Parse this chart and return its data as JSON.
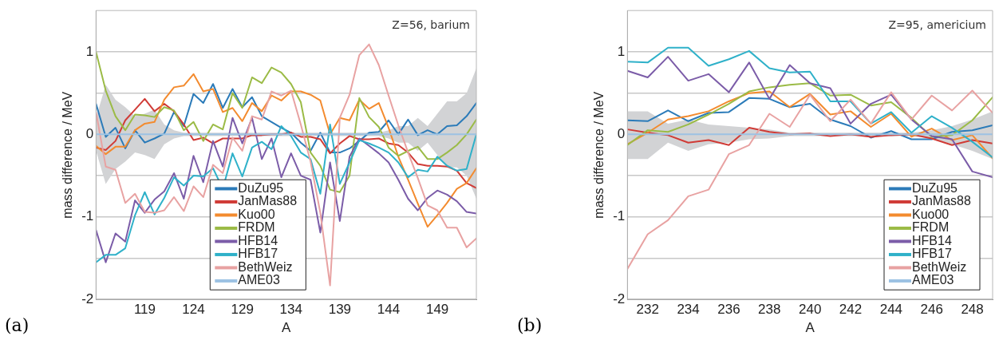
{
  "chart_data": [
    {
      "type": "line",
      "xlabel": "A",
      "ylabel": "mass difference / MeV",
      "annotations": [
        "(a)",
        "Z=56, barium"
      ],
      "xlim": [
        114,
        153
      ],
      "ylim": [
        -2,
        1.5
      ],
      "xticks": [
        119,
        124,
        129,
        134,
        139,
        144,
        149
      ],
      "yticks": [
        -2,
        {
          "value": -1.5,
          "label": null
        },
        -1,
        {
          "value": -0.5,
          "label": null
        },
        0,
        {
          "value": 0.5,
          "label": null
        },
        1
      ],
      "grid": "y",
      "legend": "bottom left",
      "x": [
        114,
        115,
        116,
        117,
        118,
        119,
        120,
        121,
        122,
        123,
        124,
        125,
        126,
        127,
        128,
        129,
        130,
        131,
        132,
        133,
        134,
        135,
        136,
        137,
        138,
        139,
        140,
        141,
        142,
        143,
        144,
        145,
        146,
        147,
        148,
        149,
        150,
        151,
        152,
        153
      ],
      "series": [
        {
          "name": "DuZu95",
          "color": "#2b7bb9",
          "values": [
            0.37,
            -0.03,
            0.08,
            -0.17,
            0.05,
            -0.1,
            -0.05,
            0.01,
            0.27,
            0.1,
            0.49,
            0.38,
            0.61,
            0.32,
            0.55,
            0.33,
            0.45,
            0.22,
            0.15,
            0.08,
            0.02,
            -0.1,
            -0.2,
            0.02,
            -0.22,
            -0.22,
            -0.17,
            -0.08,
            0.02,
            0.03,
            0.17,
            0,
            0.18,
            -0.01,
            0.05,
            0,
            0.1,
            0.11,
            0.22,
            0.38
          ]
        },
        {
          "name": "JanMas88",
          "color": "#d03b36",
          "values": [
            -0.16,
            -0.19,
            -0.08,
            0.17,
            0.3,
            0.43,
            0.28,
            0.37,
            0.28,
            0.12,
            -0.07,
            -0.04,
            -0.11,
            -0.05,
            -0.05,
            -0.05,
            -0.01,
            -0.01,
            0,
            0,
            0.02,
            -0.03,
            -0.03,
            -0.06,
            -0.23,
            -0.11,
            -0.02,
            -0.06,
            -0.06,
            -0.05,
            -0.11,
            -0.13,
            -0.22,
            -0.36,
            -0.38,
            -0.38,
            -0.39,
            -0.44,
            -0.59,
            -0.65
          ]
        },
        {
          "name": "Kuo00",
          "color": "#f38b2f",
          "values": [
            -0.14,
            -0.24,
            -0.15,
            -0.15,
            0.05,
            0.13,
            0.15,
            0.42,
            0.57,
            0.59,
            0.73,
            0.52,
            0.55,
            0.27,
            0.32,
            0.16,
            0.38,
            0.28,
            0.47,
            0.41,
            0.52,
            0.52,
            0.48,
            0.41,
            0,
            0.2,
            0.17,
            0.42,
            0.31,
            0.38,
            0.08,
            -0.27,
            -0.55,
            -0.84,
            -1.12,
            -0.98,
            -0.83,
            -0.66,
            -0.59,
            -0.41
          ]
        },
        {
          "name": "FRDM",
          "color": "#9bbb46",
          "values": [
            1,
            0.53,
            0.22,
            0.05,
            0.24,
            0.23,
            0.21,
            0.33,
            0.29,
            0.05,
            0.15,
            -0.08,
            0.12,
            0.06,
            0.5,
            0.32,
            0.69,
            0.62,
            0.81,
            0.75,
            0.61,
            0.39,
            -0.22,
            -0.38,
            -0.67,
            -0.7,
            -0.5,
            0.44,
            0.21,
            0.09,
            -0.16,
            -0.26,
            -0.2,
            -0.15,
            -0.3,
            -0.3,
            -0.22,
            -0.13,
            0,
            0.18
          ]
        },
        {
          "name": "HFB14",
          "color": "#7b5ca8",
          "values": [
            -1.16,
            -1.55,
            -1.2,
            -1.3,
            -0.8,
            -0.95,
            -0.79,
            -0.69,
            -0.47,
            -0.78,
            -0.26,
            -0.58,
            -0.08,
            -0.39,
            0.2,
            -0.11,
            0.2,
            -0.3,
            -0.05,
            -0.52,
            -0.23,
            -0.5,
            -0.55,
            -1.19,
            -0.34,
            -1.05,
            -0.27,
            -0.05,
            -0.14,
            -0.23,
            -0.34,
            -0.55,
            -0.78,
            -0.92,
            -0.77,
            -0.68,
            -0.73,
            -0.81,
            -0.94,
            -0.96
          ]
        },
        {
          "name": "HFB17",
          "color": "#2fb1c9",
          "values": [
            -1.55,
            -1.46,
            -1.46,
            -1.38,
            -0.98,
            -0.7,
            -0.97,
            -0.77,
            -0.52,
            -0.62,
            -0.5,
            -0.51,
            -0.41,
            -0.66,
            -0.23,
            -0.51,
            -0.16,
            -0.09,
            -0.18,
            0.1,
            -0.02,
            -0.22,
            -0.3,
            -0.72,
            0.12,
            -0.6,
            -0.34,
            -0.07,
            -0.11,
            -0.16,
            -0.22,
            -0.34,
            -0.52,
            -0.43,
            -0.45,
            -0.27,
            -0.38,
            -0.44,
            -0.42,
            0
          ]
        },
        {
          "name": "BethWeiz",
          "color": "#e8a2a2",
          "values": [
            0.27,
            -0.39,
            -0.43,
            -0.83,
            -0.72,
            -0.94,
            -0.95,
            -0.92,
            -0.76,
            -0.93,
            -0.63,
            -0.76,
            -0.37,
            -0.47,
            -0.04,
            -0.2,
            0.22,
            0.18,
            0.52,
            0.47,
            0.53,
            0.12,
            -0.33,
            -0.95,
            -1.83,
            0.2,
            0.48,
            0.96,
            1.09,
            0.84,
            0.47,
            0.11,
            -0.22,
            -0.53,
            -0.86,
            -0.92,
            -1.13,
            -1.13,
            -1.37,
            -1.26
          ]
        },
        {
          "name": "AME03",
          "color": "#9cc2e3",
          "values": [
            0,
            0,
            0,
            0,
            0,
            0,
            0,
            0,
            0,
            0,
            0,
            0,
            0,
            0,
            0,
            0,
            0,
            0,
            0,
            0,
            0,
            0,
            0,
            0,
            0,
            0,
            0,
            0,
            0,
            0,
            0,
            0,
            0,
            0,
            0,
            0,
            0,
            0,
            0,
            0
          ],
          "lower": [
            -0.2,
            -0.6,
            -0.42,
            -0.33,
            -0.22,
            -0.25,
            -0.3,
            -0.12,
            -0.05,
            -0.02,
            -0.02,
            -0.02,
            -0.02,
            -0.02,
            -0.02,
            -0.02,
            -0.02,
            -0.02,
            -0.02,
            -0.02,
            -0.02,
            -0.02,
            -0.02,
            -0.02,
            -0.02,
            -0.02,
            -0.02,
            -0.02,
            -0.02,
            -0.02,
            -0.05,
            -0.1,
            -0.1,
            -0.2,
            -0.1,
            -0.25,
            -0.4,
            -0.4,
            -0.5,
            -0.78
          ],
          "upper": [
            0.2,
            0.6,
            0.42,
            0.33,
            0.22,
            0.25,
            0.3,
            0.12,
            0.05,
            0.02,
            0.02,
            0.02,
            0.02,
            0.02,
            0.02,
            0.02,
            0.02,
            0.02,
            0.02,
            0.02,
            0.02,
            0.02,
            0.02,
            0.02,
            0.02,
            0.02,
            0.02,
            0.02,
            0.02,
            0.02,
            0.05,
            0.1,
            0.1,
            0.2,
            0.1,
            0.25,
            0.4,
            0.4,
            0.5,
            0.8
          ]
        }
      ]
    },
    {
      "type": "line",
      "xlabel": "A",
      "ylabel": "mass difference / MeV",
      "annotations": [
        "(b)",
        "Z=95, americium"
      ],
      "xlim": [
        231,
        249
      ],
      "ylim": [
        -2,
        1.5
      ],
      "xticks": [
        232,
        234,
        236,
        238,
        240,
        242,
        244,
        246,
        248
      ],
      "yticks": [
        -2,
        {
          "value": -1.5,
          "label": null
        },
        -1,
        {
          "value": -0.5,
          "label": null
        },
        0,
        {
          "value": 0.5,
          "label": null
        },
        1
      ],
      "grid": "y",
      "legend": "bottom right",
      "x": [
        231,
        232,
        233,
        234,
        235,
        236,
        237,
        238,
        239,
        240,
        241,
        242,
        243,
        244,
        245,
        246,
        247,
        248,
        249
      ],
      "series": [
        {
          "name": "DuZu95",
          "color": "#2b7bb9",
          "values": [
            0.17,
            0.16,
            0.29,
            0.16,
            0.26,
            0.27,
            0.44,
            0.43,
            0.33,
            0.37,
            0.18,
            0.1,
            -0.04,
            0.04,
            -0.06,
            -0.06,
            0.03,
            0.05,
            0.11
          ]
        },
        {
          "name": "JanMas88",
          "color": "#d03b36",
          "values": [
            0.06,
            0.02,
            -0.01,
            -0.1,
            -0.07,
            -0.13,
            0.08,
            0.03,
            0,
            0.01,
            -0.02,
            0,
            -0.03,
            -0.01,
            0,
            -0.05,
            -0.13,
            -0.07,
            -0.11
          ]
        },
        {
          "name": "Kuo00",
          "color": "#f38b2f",
          "values": [
            -0.12,
            0.02,
            0.18,
            0.22,
            0.28,
            0.4,
            0.5,
            0.52,
            0.33,
            0.49,
            0.24,
            0.28,
            0.09,
            0.25,
            -0.03,
            0.07,
            -0.07,
            -0.01,
            -0.29
          ]
        },
        {
          "name": "FRDM",
          "color": "#9bbb46",
          "values": [
            -0.13,
            0.05,
            0.03,
            0.12,
            0.24,
            0.37,
            0.52,
            0.57,
            0.6,
            0.62,
            0.47,
            0.48,
            0.35,
            0.39,
            0.2,
            -0.03,
            -0.01,
            0.17,
            0.45
          ]
        },
        {
          "name": "HFB14",
          "color": "#7b5ca8",
          "values": [
            0.77,
            0.69,
            0.94,
            0.65,
            0.73,
            0.51,
            0.87,
            0.43,
            0.84,
            0.62,
            0.56,
            0.13,
            0.37,
            0.48,
            0.18,
            -0.02,
            -0.06,
            -0.45,
            -0.52
          ]
        },
        {
          "name": "HFB17",
          "color": "#2fb1c9",
          "values": [
            0.88,
            0.87,
            1.05,
            1.05,
            0.83,
            0.91,
            1.01,
            0.8,
            0.75,
            0.76,
            0.4,
            0.4,
            0.13,
            0.27,
            0.02,
            0.22,
            0.08,
            -0.09,
            -0.28
          ]
        },
        {
          "name": "BethWeiz",
          "color": "#e8a2a2",
          "values": [
            -1.63,
            -1.21,
            -1.04,
            -0.75,
            -0.67,
            -0.24,
            -0.13,
            0.25,
            0.09,
            0.48,
            0.16,
            0.42,
            0.13,
            0.51,
            0.18,
            0.47,
            0.29,
            0.53,
            0.26
          ]
        },
        {
          "name": "AME03",
          "color": "#9cc2e3",
          "values": [
            0,
            0,
            0,
            0,
            0,
            0,
            0,
            0,
            0,
            0,
            0,
            0,
            0,
            0,
            0,
            0,
            0,
            0,
            0
          ],
          "lower": [
            -0.3,
            -0.3,
            -0.1,
            -0.2,
            -0.12,
            -0.1,
            -0.06,
            -0.05,
            -0.02,
            -0.02,
            -0.02,
            -0.02,
            -0.02,
            -0.02,
            -0.02,
            -0.05,
            -0.12,
            -0.2,
            -0.3
          ],
          "upper": [
            0.28,
            0.28,
            0.13,
            0.18,
            0.12,
            0.1,
            0.08,
            0.06,
            0.02,
            0.02,
            0.02,
            0.02,
            0.02,
            0.02,
            0.02,
            0.05,
            0.1,
            0.18,
            0.28
          ]
        }
      ]
    }
  ]
}
